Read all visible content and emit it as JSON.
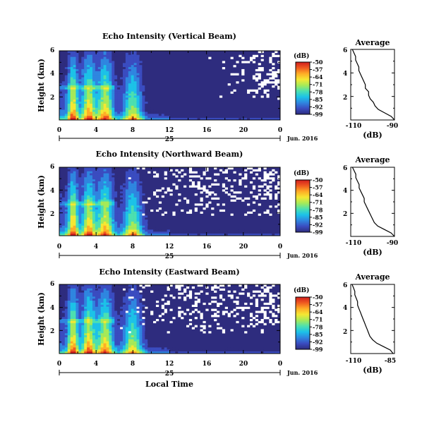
{
  "chart_data": {
    "type": "heatmap",
    "figure": {
      "x_axis_label": "Local Time",
      "date_label": "Jun. 2016",
      "date_tick": "25",
      "x_ticks": [
        "0",
        "4",
        "8",
        "12",
        "16",
        "20",
        "0"
      ],
      "x_range_hours": [
        0,
        24
      ],
      "y_label": "Height (km)",
      "y_ticks_main": [
        "2",
        "4",
        "6"
      ],
      "y_range_km": [
        0,
        6
      ],
      "colorbar_unit": "(dB)",
      "colorbar_ticks": [
        "-50",
        "-57",
        "-64",
        "-71",
        "-78",
        "-85",
        "-92",
        "-99"
      ],
      "colorbar_range_db": [
        -99,
        -50
      ],
      "colorbar_colors": [
        "#2e2c7e",
        "#3a4cc0",
        "#2f86e0",
        "#1cc2e8",
        "#4ce0b0",
        "#a6ea58",
        "#f5e833",
        "#ffae26",
        "#f05b20",
        "#d01e1e"
      ],
      "profile_title": "Average",
      "profile_xlabel": "(dB)",
      "profile_y_ticks": [
        "2",
        "4",
        "6"
      ]
    },
    "panels": [
      {
        "title": "Echo Intensity (Vertical Beam)",
        "profile_x_ticks": [
          "-110",
          "-90"
        ],
        "profile_x_range": [
          -115,
          -88
        ],
        "profile": {
          "height_km": [
            0.0,
            0.3,
            0.6,
            0.9,
            1.2,
            1.5,
            1.8,
            2.1,
            2.4,
            2.7,
            3.0,
            3.3,
            3.6,
            3.9,
            4.2,
            4.5,
            4.8,
            5.1,
            5.4,
            5.7,
            6.0
          ],
          "db": [
            -88,
            -90,
            -94,
            -98,
            -100,
            -101,
            -103,
            -104,
            -104,
            -106,
            -106,
            -107,
            -108,
            -109,
            -110,
            -110,
            -111,
            -112,
            -112,
            -113,
            -114
          ]
        },
        "no_data_onset_hour": 15.5
      },
      {
        "title": "Echo Intensity (Northward Beam)",
        "profile_x_ticks": [
          "-110",
          "-90"
        ],
        "profile_x_range": [
          -115,
          -89
        ],
        "profile": {
          "height_km": [
            0.0,
            0.3,
            0.6,
            0.9,
            1.2,
            1.5,
            1.8,
            2.1,
            2.4,
            2.7,
            3.0,
            3.3,
            3.6,
            3.9,
            4.2,
            4.5,
            4.8,
            5.1,
            5.4,
            5.7,
            6.0
          ],
          "db": [
            -89,
            -91,
            -95,
            -99,
            -101,
            -102,
            -103,
            -104,
            -105,
            -106,
            -107,
            -107,
            -108,
            -109,
            -110,
            -110,
            -111,
            -112,
            -112,
            -113,
            -114
          ]
        },
        "no_data_onset_hour": 6.5
      },
      {
        "title": "Echo Intensity (Eastward Beam)",
        "profile_x_ticks": [
          "-110",
          "-85"
        ],
        "profile_x_range": [
          -115,
          -83
        ],
        "profile": {
          "height_km": [
            0.0,
            0.3,
            0.6,
            0.9,
            1.2,
            1.5,
            1.8,
            2.1,
            2.4,
            2.7,
            3.0,
            3.3,
            3.6,
            3.9,
            4.2,
            4.5,
            4.8,
            5.1,
            5.4,
            5.7,
            6.0
          ],
          "db": [
            -84,
            -86,
            -91,
            -96,
            -99,
            -101,
            -102,
            -103,
            -104,
            -105,
            -106,
            -107,
            -108,
            -109,
            -110,
            -110,
            -111,
            -112,
            -112,
            -113,
            -114
          ]
        },
        "no_data_onset_hour": 6.5
      }
    ]
  }
}
